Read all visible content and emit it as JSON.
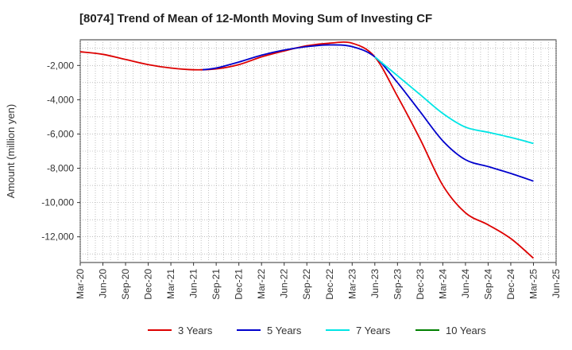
{
  "chart_data": {
    "type": "line",
    "title": "[8074]  Trend of Mean of 12-Month Moving Sum of Investing CF",
    "xlabel": "",
    "ylabel": "Amount (million yen)",
    "ylim": [
      -13500,
      -500
    ],
    "yticks": [
      -12000,
      -10000,
      -8000,
      -6000,
      -4000,
      -2000
    ],
    "ytick_labels": [
      "-12,000",
      "-10,000",
      "-8,000",
      "-6,000",
      "-4,000",
      "-2,000"
    ],
    "x_labels": [
      "Mar-20",
      "Jun-20",
      "Sep-20",
      "Dec-20",
      "Mar-21",
      "Jun-21",
      "Sep-21",
      "Dec-21",
      "Mar-22",
      "Jun-22",
      "Sep-22",
      "Dec-22",
      "Mar-23",
      "Jun-23",
      "Sep-23",
      "Dec-23",
      "Mar-24",
      "Jun-24",
      "Sep-24",
      "Dec-24",
      "Mar-25",
      "Jun-25"
    ],
    "grid": true,
    "legend_position": "bottom",
    "series": [
      {
        "name": "3 Years",
        "color": "#dd0000",
        "points": [
          [
            0,
            -1200
          ],
          [
            1,
            -1350
          ],
          [
            2,
            -1650
          ],
          [
            3,
            -1950
          ],
          [
            4,
            -2150
          ],
          [
            5,
            -2250
          ],
          [
            6,
            -2200
          ],
          [
            7,
            -1950
          ],
          [
            8,
            -1500
          ],
          [
            9,
            -1150
          ],
          [
            10,
            -850
          ],
          [
            11,
            -700
          ],
          [
            12,
            -700
          ],
          [
            13,
            -1500
          ],
          [
            14,
            -3800
          ],
          [
            15,
            -6300
          ],
          [
            16,
            -9000
          ],
          [
            17,
            -10600
          ],
          [
            18,
            -11300
          ],
          [
            19,
            -12100
          ],
          [
            20,
            -13250
          ]
        ]
      },
      {
        "name": "5 Years",
        "color": "#0000cc",
        "points": [
          [
            5.4,
            -2250
          ],
          [
            6,
            -2150
          ],
          [
            7,
            -1800
          ],
          [
            8,
            -1400
          ],
          [
            9,
            -1100
          ],
          [
            10,
            -900
          ],
          [
            11,
            -800
          ],
          [
            12,
            -900
          ],
          [
            13,
            -1500
          ],
          [
            14,
            -3000
          ],
          [
            15,
            -4700
          ],
          [
            16,
            -6400
          ],
          [
            17,
            -7500
          ],
          [
            18,
            -7900
          ],
          [
            19,
            -8300
          ],
          [
            20,
            -8750
          ]
        ]
      },
      {
        "name": "7 Years",
        "color": "#00e5e5",
        "points": [
          [
            13,
            -1500
          ],
          [
            14,
            -2600
          ],
          [
            15,
            -3700
          ],
          [
            16,
            -4800
          ],
          [
            17,
            -5600
          ],
          [
            18,
            -5900
          ],
          [
            19,
            -6200
          ],
          [
            20,
            -6550
          ]
        ]
      },
      {
        "name": "10 Years",
        "color": "#008000",
        "points": []
      }
    ]
  }
}
